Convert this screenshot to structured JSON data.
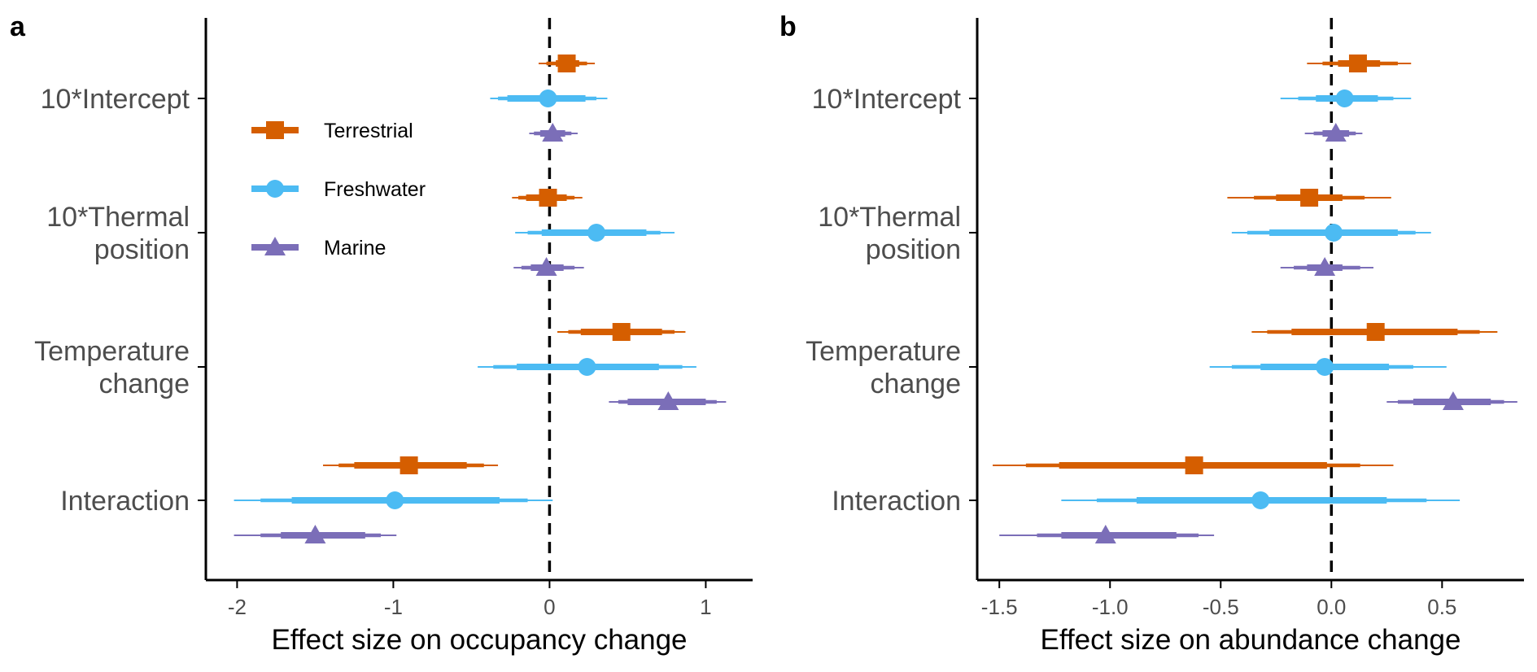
{
  "colors": {
    "Terrestrial": "#d55e00",
    "Freshwater": "#4cbbf3",
    "Marine": "#7b6eb8",
    "axis": "#000000",
    "tick_text": "#4d4d4d"
  },
  "legend": {
    "placement": "top-left of panel a",
    "entries": [
      {
        "label": "Terrestrial",
        "shape": "square"
      },
      {
        "label": "Freshwater",
        "shape": "circle"
      },
      {
        "label": "Marine",
        "shape": "triangle"
      }
    ]
  },
  "chart_data": [
    {
      "panel": "a",
      "type": "scatter",
      "subtype": "coefficient plot with interval bars",
      "xlabel": "Effect size on occupancy change",
      "ylabel": "",
      "xlim": [
        -2.2,
        1.3
      ],
      "xticks": [
        -2,
        -1,
        0,
        1
      ],
      "xtick_labels": [
        "-2",
        "-1",
        "0",
        "1"
      ],
      "reference_line": 0,
      "grid": false,
      "categories": [
        {
          "label": [
            "10*Intercept"
          ]
        },
        {
          "label": [
            "10*Thermal",
            "position"
          ]
        },
        {
          "label": [
            "Temperature",
            "change"
          ]
        },
        {
          "label": [
            "Interaction"
          ]
        }
      ],
      "series": [
        {
          "name": "Terrestrial",
          "shape": "square",
          "estimate": [
            0.11,
            -0.01,
            0.46,
            -0.9
          ],
          "inner": [
            [
              0.04,
              0.19
            ],
            [
              -0.15,
              0.11
            ],
            [
              0.2,
              0.72
            ],
            [
              -1.25,
              -0.53
            ]
          ],
          "middle": [
            [
              -0.02,
              0.24
            ],
            [
              -0.2,
              0.16
            ],
            [
              0.12,
              0.8
            ],
            [
              -1.35,
              -0.42
            ]
          ],
          "outer": [
            [
              -0.07,
              0.29
            ],
            [
              -0.24,
              0.21
            ],
            [
              0.05,
              0.87
            ],
            [
              -1.45,
              -0.33
            ]
          ]
        },
        {
          "name": "Freshwater",
          "shape": "circle",
          "estimate": [
            -0.01,
            0.3,
            0.24,
            -0.99
          ],
          "inner": [
            [
              -0.27,
              0.23
            ],
            [
              -0.05,
              0.62
            ],
            [
              -0.21,
              0.7
            ],
            [
              -1.65,
              -0.32
            ]
          ],
          "middle": [
            [
              -0.33,
              0.3
            ],
            [
              -0.14,
              0.71
            ],
            [
              -0.36,
              0.85
            ],
            [
              -1.85,
              -0.14
            ]
          ],
          "outer": [
            [
              -0.38,
              0.37
            ],
            [
              -0.22,
              0.8
            ],
            [
              -0.46,
              0.94
            ],
            [
              -2.02,
              0.02
            ]
          ]
        },
        {
          "name": "Marine",
          "shape": "triangle",
          "estimate": [
            0.02,
            -0.02,
            0.76,
            -1.5
          ],
          "inner": [
            [
              -0.06,
              0.1
            ],
            [
              -0.12,
              0.09
            ],
            [
              0.5,
              1.0
            ],
            [
              -1.72,
              -1.18
            ]
          ],
          "middle": [
            [
              -0.1,
              0.14
            ],
            [
              -0.18,
              0.16
            ],
            [
              0.44,
              1.07
            ],
            [
              -1.85,
              -1.08
            ]
          ],
          "outer": [
            [
              -0.13,
              0.18
            ],
            [
              -0.23,
              0.22
            ],
            [
              0.38,
              1.13
            ],
            [
              -2.02,
              -0.98
            ]
          ]
        }
      ]
    },
    {
      "panel": "b",
      "type": "scatter",
      "subtype": "coefficient plot with interval bars",
      "xlabel": "Effect size on abundance change",
      "ylabel": "",
      "xlim": [
        -1.6,
        0.87
      ],
      "xticks": [
        -1.5,
        -1.0,
        -0.5,
        0.0,
        0.5
      ],
      "xtick_labels": [
        "-1.5",
        "-1.0",
        "-0.5",
        "0.0",
        "0.5"
      ],
      "reference_line": 0,
      "grid": false,
      "categories": [
        {
          "label": [
            "10*Intercept"
          ]
        },
        {
          "label": [
            "10*Thermal",
            "position"
          ]
        },
        {
          "label": [
            "Temperature",
            "change"
          ]
        },
        {
          "label": [
            "Interaction"
          ]
        }
      ],
      "series": [
        {
          "name": "Terrestrial",
          "shape": "square",
          "estimate": [
            0.12,
            -0.1,
            0.2,
            -0.62
          ],
          "inner": [
            [
              0.03,
              0.22
            ],
            [
              -0.25,
              0.05
            ],
            [
              -0.18,
              0.57
            ],
            [
              -1.23,
              -0.02
            ]
          ],
          "middle": [
            [
              -0.04,
              0.3
            ],
            [
              -0.35,
              0.15
            ],
            [
              -0.29,
              0.67
            ],
            [
              -1.38,
              0.13
            ]
          ],
          "outer": [
            [
              -0.11,
              0.36
            ],
            [
              -0.47,
              0.27
            ],
            [
              -0.36,
              0.75
            ],
            [
              -1.53,
              0.28
            ]
          ]
        },
        {
          "name": "Freshwater",
          "shape": "circle",
          "estimate": [
            0.06,
            0.01,
            -0.03,
            -0.32
          ],
          "inner": [
            [
              -0.07,
              0.21
            ],
            [
              -0.28,
              0.3
            ],
            [
              -0.32,
              0.26
            ],
            [
              -0.88,
              0.25
            ]
          ],
          "middle": [
            [
              -0.15,
              0.28
            ],
            [
              -0.38,
              0.38
            ],
            [
              -0.45,
              0.37
            ],
            [
              -1.06,
              0.43
            ]
          ],
          "outer": [
            [
              -0.23,
              0.36
            ],
            [
              -0.45,
              0.45
            ],
            [
              -0.55,
              0.52
            ],
            [
              -1.22,
              0.58
            ]
          ]
        },
        {
          "name": "Marine",
          "shape": "triangle",
          "estimate": [
            0.02,
            -0.03,
            0.55,
            -1.02
          ],
          "inner": [
            [
              -0.04,
              0.08
            ],
            [
              -0.11,
              0.05
            ],
            [
              0.37,
              0.72
            ],
            [
              -1.22,
              -0.7
            ]
          ],
          "middle": [
            [
              -0.08,
              0.11
            ],
            [
              -0.17,
              0.13
            ],
            [
              0.3,
              0.78
            ],
            [
              -1.33,
              -0.6
            ]
          ],
          "outer": [
            [
              -0.12,
              0.14
            ],
            [
              -0.23,
              0.19
            ],
            [
              0.25,
              0.84
            ],
            [
              -1.5,
              -0.53
            ]
          ]
        }
      ]
    }
  ]
}
